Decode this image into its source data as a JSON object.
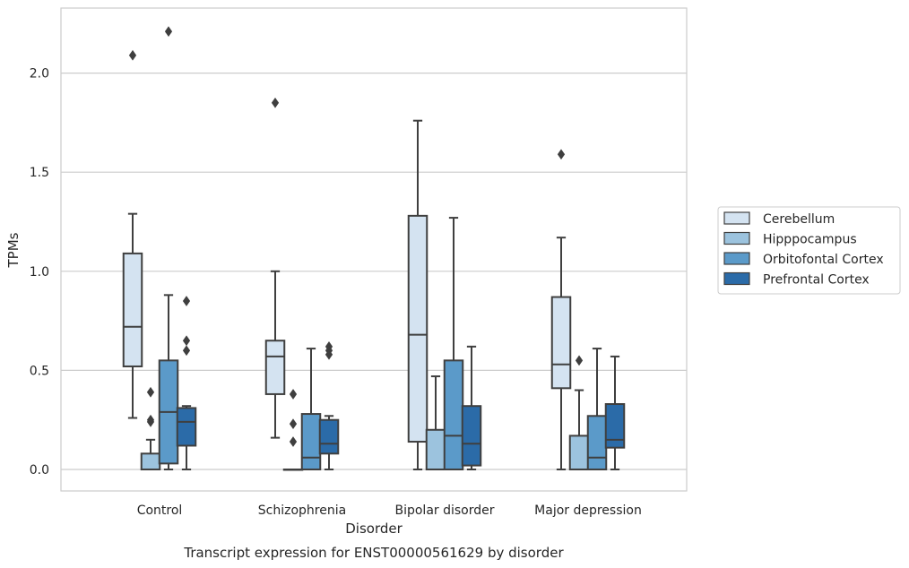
{
  "chart_data": {
    "type": "box",
    "title": "",
    "caption": "Transcript expression for ENST00000561629 by disorder",
    "xlabel": "Disorder",
    "ylabel": "TPMs",
    "ylim": [
      -0.11,
      2.34
    ],
    "yticks": [
      0.0,
      0.5,
      1.0,
      1.5,
      2.0
    ],
    "ytick_labels": [
      "0.0",
      "0.5",
      "1.0",
      "1.5",
      "2.0"
    ],
    "grid": "horizontal",
    "legend_position": "right",
    "categories": [
      "Control",
      "Schizophrenia",
      "Bipolar disorder",
      "Major depression"
    ],
    "series": [
      {
        "name": "Cerebellum",
        "color": "#d4e3f1",
        "boxes": [
          {
            "whislo": 0.26,
            "q1": 0.52,
            "med": 0.72,
            "q3": 1.09,
            "whishi": 1.29,
            "fliers": [
              2.09
            ]
          },
          {
            "whislo": 0.16,
            "q1": 0.38,
            "med": 0.57,
            "q3": 0.65,
            "whishi": 1.0,
            "fliers": [
              1.85
            ]
          },
          {
            "whislo": 0.0,
            "q1": 0.14,
            "med": 0.68,
            "q3": 1.28,
            "whishi": 1.76,
            "fliers": []
          },
          {
            "whislo": 0.0,
            "q1": 0.41,
            "med": 0.53,
            "q3": 0.87,
            "whishi": 1.17,
            "fliers": [
              1.59
            ]
          }
        ]
      },
      {
        "name": "Hipppocampus",
        "color": "#9cc3de",
        "boxes": [
          {
            "whislo": 0.0,
            "q1": 0.0,
            "med": 0.0,
            "q3": 0.08,
            "whishi": 0.15,
            "fliers": [
              0.39,
              0.25,
              0.24
            ]
          },
          {
            "whislo": 0.0,
            "q1": 0.0,
            "med": 0.0,
            "q3": 0.0,
            "whishi": 0.0,
            "fliers": [
              0.38,
              0.23,
              0.14
            ]
          },
          {
            "whislo": 0.0,
            "q1": 0.0,
            "med": 0.0,
            "q3": 0.2,
            "whishi": 0.47,
            "fliers": []
          },
          {
            "whislo": 0.0,
            "q1": 0.0,
            "med": 0.0,
            "q3": 0.17,
            "whishi": 0.4,
            "fliers": [
              0.55
            ]
          }
        ]
      },
      {
        "name": "Orbitofontal Cortex",
        "color": "#5b9ac9",
        "boxes": [
          {
            "whislo": 0.0,
            "q1": 0.03,
            "med": 0.29,
            "q3": 0.55,
            "whishi": 0.88,
            "fliers": [
              2.21
            ]
          },
          {
            "whislo": 0.0,
            "q1": 0.0,
            "med": 0.06,
            "q3": 0.28,
            "whishi": 0.61,
            "fliers": []
          },
          {
            "whislo": 0.0,
            "q1": 0.0,
            "med": 0.17,
            "q3": 0.55,
            "whishi": 1.27,
            "fliers": []
          },
          {
            "whislo": 0.0,
            "q1": 0.0,
            "med": 0.06,
            "q3": 0.27,
            "whishi": 0.61,
            "fliers": []
          }
        ]
      },
      {
        "name": "Prefrontal Cortex",
        "color": "#2b6ba8",
        "boxes": [
          {
            "whislo": 0.0,
            "q1": 0.12,
            "med": 0.24,
            "q3": 0.31,
            "whishi": 0.32,
            "fliers": [
              0.85,
              0.65,
              0.6
            ]
          },
          {
            "whislo": 0.0,
            "q1": 0.08,
            "med": 0.13,
            "q3": 0.25,
            "whishi": 0.27,
            "fliers": [
              0.62,
              0.6,
              0.58
            ]
          },
          {
            "whislo": 0.0,
            "q1": 0.02,
            "med": 0.13,
            "q3": 0.32,
            "whishi": 0.62,
            "fliers": []
          },
          {
            "whislo": 0.0,
            "q1": 0.11,
            "med": 0.15,
            "q3": 0.33,
            "whishi": 0.57,
            "fliers": []
          }
        ]
      }
    ]
  }
}
